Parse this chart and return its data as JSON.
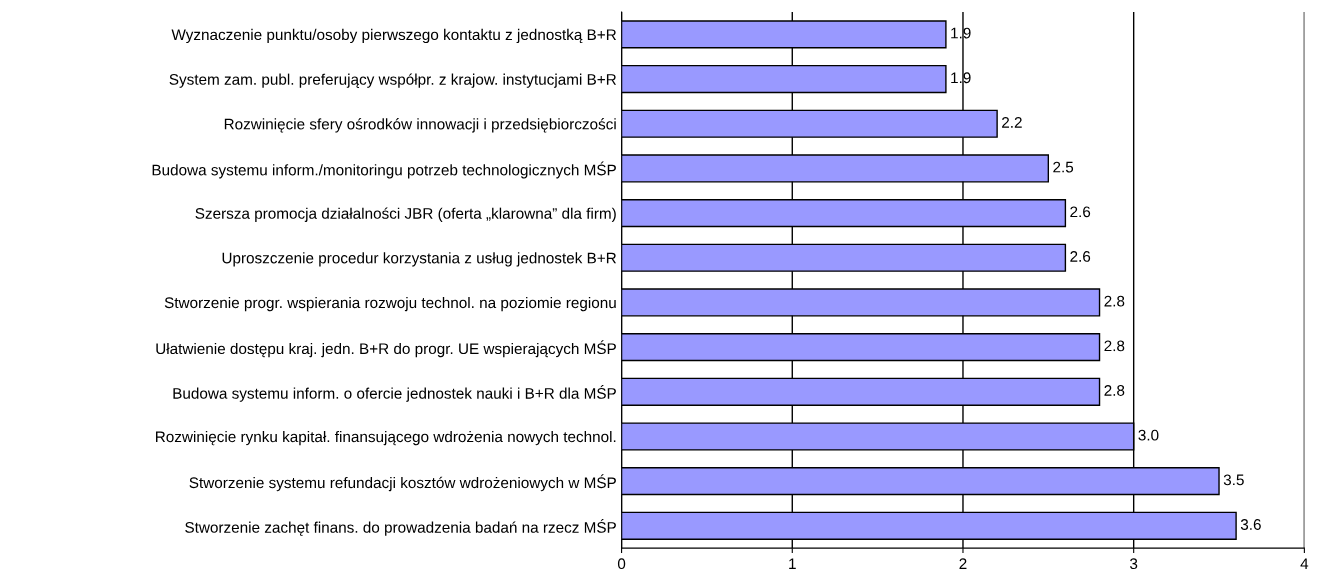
{
  "chart_data": {
    "type": "bar",
    "orientation": "horizontal",
    "categories": [
      "Wyznaczenie punktu/osoby pierwszego kontaktu z jednostką B+R",
      "System zam. publ. preferujący współpr. z krajow. instytucjami B+R",
      "Rozwinięcie sfery ośrodków innowacji i przedsiębiorczości",
      "Budowa systemu inform./monitoringu potrzeb technologicznych MŚP",
      "Szersza promocja działalności JBR (oferta „klarowna” dla firm)",
      "Uproszczenie procedur korzystania z usług jednostek B+R",
      "Stworzenie progr. wspierania rozwoju technol. na poziomie regionu",
      "Ułatwienie dostępu kraj. jedn. B+R do progr. UE wspierających MŚP",
      "Budowa systemu inform. o ofercie jednostek nauki i B+R dla MŚP",
      "Rozwinięcie rynku kapitał. finansującego wdrożenia nowych technol.",
      "Stworzenie systemu refundacji kosztów wdrożeniowych w MŚP",
      "Stworzenie zachęt finans. do prowadzenia badań na rzecz MŚP"
    ],
    "values": [
      1.9,
      1.9,
      2.2,
      2.5,
      2.6,
      2.6,
      2.8,
      2.8,
      2.8,
      3.0,
      3.5,
      3.6
    ],
    "value_labels": [
      "1.9",
      "1.9",
      "2.2",
      "2.5",
      "2.6",
      "2.6",
      "2.8",
      "2.8",
      "2.8",
      "3.0",
      "3.5",
      "3.6"
    ],
    "color": "#9999ff",
    "xlim": [
      0,
      4
    ],
    "xticks": [
      0,
      1,
      2,
      3,
      4
    ],
    "grid": "x"
  }
}
